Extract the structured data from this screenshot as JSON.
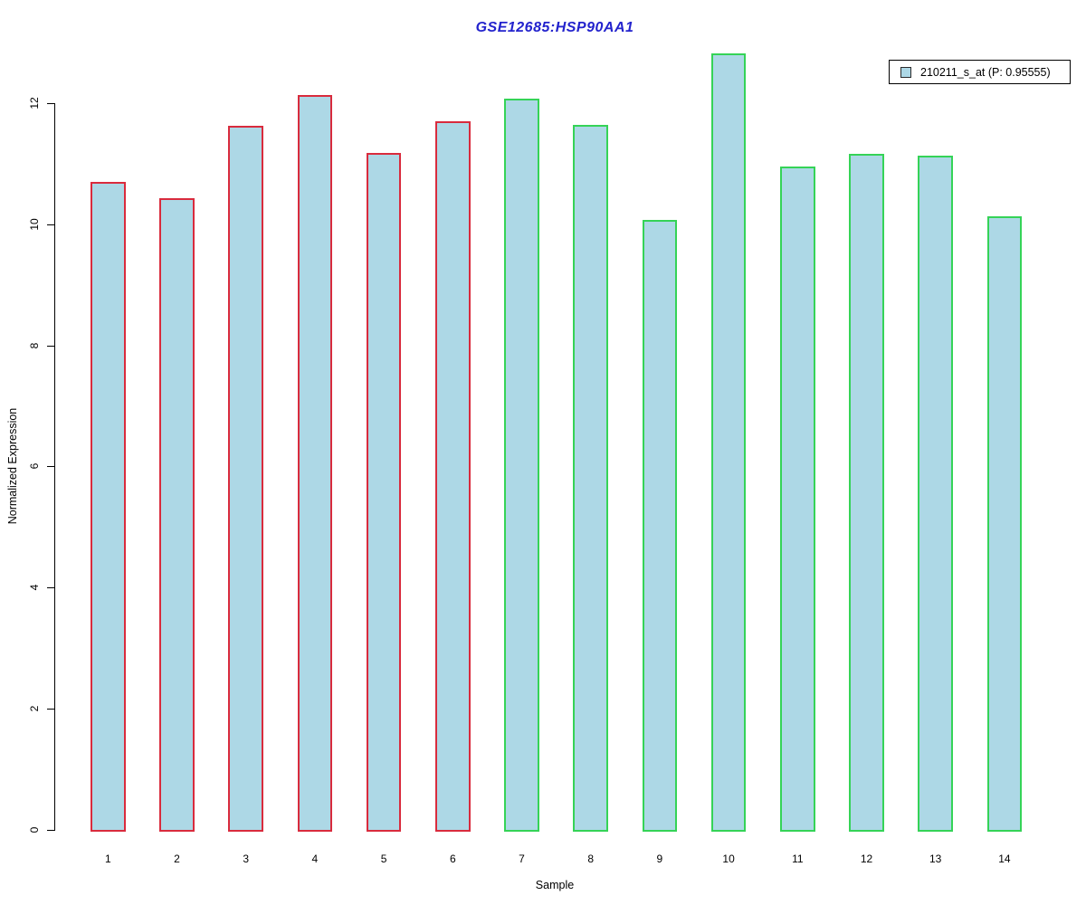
{
  "chart_data": {
    "type": "bar",
    "title": "GSE12685:HSP90AA1",
    "xlabel": "Sample",
    "ylabel": "Normalized Expression",
    "categories": [
      "1",
      "2",
      "3",
      "4",
      "5",
      "6",
      "7",
      "8",
      "9",
      "10",
      "11",
      "12",
      "13",
      "14"
    ],
    "values": [
      10.7,
      10.43,
      11.63,
      12.13,
      11.18,
      11.7,
      12.07,
      11.64,
      10.07,
      12.82,
      10.95,
      11.16,
      11.13,
      10.13
    ],
    "bar_border_colors": [
      "#d92b3d",
      "#d92b3d",
      "#d92b3d",
      "#d92b3d",
      "#d92b3d",
      "#d92b3d",
      "#35d357",
      "#35d357",
      "#35d357",
      "#35d357",
      "#35d357",
      "#35d357",
      "#35d357",
      "#35d357"
    ],
    "yticks": [
      "0",
      "2",
      "4",
      "6",
      "8",
      "10",
      "12"
    ],
    "ylim": [
      0,
      13
    ],
    "grid": false,
    "legend": {
      "label": "210211_s_at (P: 0.95555)",
      "position": "top-right"
    },
    "colors": {
      "title": "#2323cd",
      "bar_fill": "#add8e6",
      "group1_border": "#d92b3d",
      "group2_border": "#35d357",
      "axis": "#000000"
    }
  }
}
